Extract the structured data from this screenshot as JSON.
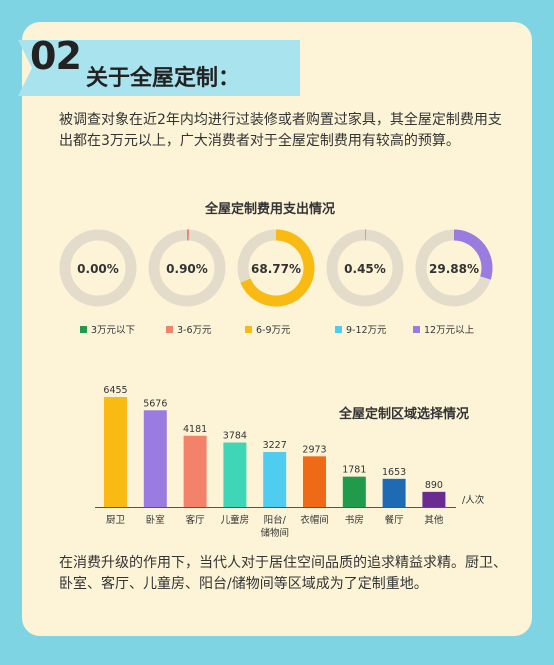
{
  "header": {
    "number": "02",
    "title": "关于全屋定制："
  },
  "intro": "被调查对象在近2年内均进行过装修或者购置过家具，其全屋定制费用支出都在3万元以上，广大消费者对于全屋定制费用有较高的预算。",
  "outro": "在消费升级的作用下，当代人对于居住空间品质的追求精益求精。厨卫、卧室、客厅、儿童房、阳台/储物间等区域成为了定制重地。",
  "colors": {
    "background": "#7fd4e3",
    "card": "#fdf4d8",
    "ring_track": "#e4dccb"
  },
  "chart_data": [
    {
      "type": "pie",
      "title": "全屋定制费用支出情况",
      "categories": [
        "3万元以下",
        "3-6万元",
        "6-9万元",
        "9-12万元",
        "12万元以上"
      ],
      "values": [
        0.0,
        0.9,
        68.77,
        0.45,
        29.88
      ],
      "labels": [
        "0.00%",
        "0.90%",
        "68.77%",
        "0.45%",
        "29.88%"
      ],
      "colors": [
        "#1f9b4b",
        "#f2826a",
        "#f9bb13",
        "#4fcdf0",
        "#9a7be0"
      ],
      "legend": "bottom"
    },
    {
      "type": "bar",
      "title": "全屋定制区域选择情况",
      "categories": [
        "厨卫",
        "卧室",
        "客厅",
        "儿童房",
        "阳台/储物间",
        "衣帽间",
        "书房",
        "餐厅",
        "其他"
      ],
      "values": [
        6455,
        5676,
        4181,
        3784,
        3227,
        2973,
        1781,
        1653,
        890
      ],
      "colors": [
        "#f9bb13",
        "#9a7be0",
        "#f2826a",
        "#3fd6b8",
        "#4fcdf0",
        "#ef6a16",
        "#1f9b4b",
        "#1f6bb3",
        "#6a2a90"
      ],
      "unit": "/人次",
      "ylim": [
        0,
        7000
      ],
      "grid": false
    }
  ]
}
